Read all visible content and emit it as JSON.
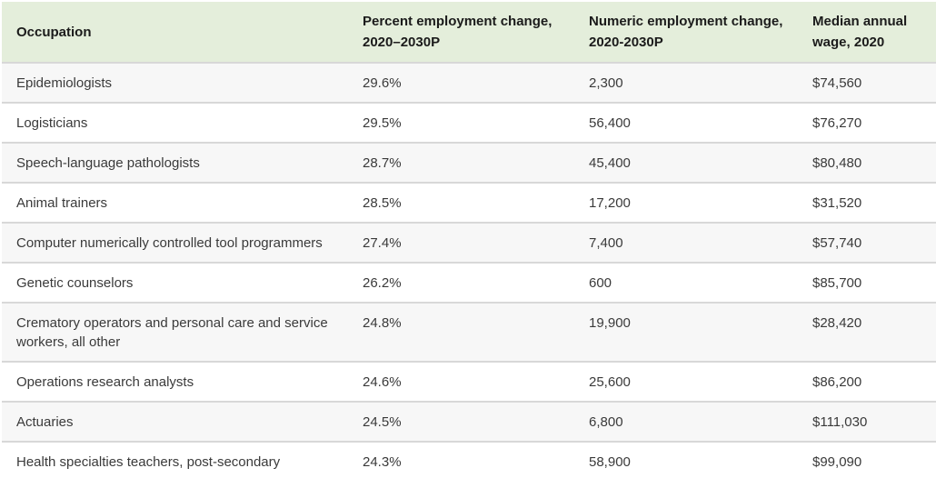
{
  "colors": {
    "header_bg": "#e4eedb",
    "row_bg": "#ffffff",
    "row_alt_bg": "#f7f7f7",
    "row_border": "#d8d8d8",
    "header_text": "#1b1b1b",
    "body_text": "#3a3a3a"
  },
  "chart_data": {
    "type": "table",
    "title": "",
    "columns": [
      "Occupation",
      "Percent employment change, 2020–2030P",
      "Numeric employment change, 2020-2030P",
      "Median annual wage, 2020"
    ],
    "rows": [
      {
        "occupation": "Epidemiologists",
        "percent_change": "29.6%",
        "numeric_change": "2,300",
        "median_wage": "$74,560"
      },
      {
        "occupation": "Logisticians",
        "percent_change": "29.5%",
        "numeric_change": "56,400",
        "median_wage": "$76,270"
      },
      {
        "occupation": "Speech-language pathologists",
        "percent_change": "28.7%",
        "numeric_change": "45,400",
        "median_wage": "$80,480"
      },
      {
        "occupation": "Animal trainers",
        "percent_change": "28.5%",
        "numeric_change": "17,200",
        "median_wage": "$31,520"
      },
      {
        "occupation": "Computer numerically controlled tool programmers",
        "percent_change": "27.4%",
        "numeric_change": "7,400",
        "median_wage": "$57,740"
      },
      {
        "occupation": "Genetic counselors",
        "percent_change": "26.2%",
        "numeric_change": "600",
        "median_wage": "$85,700"
      },
      {
        "occupation": "Crematory operators and personal care and service workers, all other",
        "percent_change": "24.8%",
        "numeric_change": "19,900",
        "median_wage": "$28,420"
      },
      {
        "occupation": "Operations research analysts",
        "percent_change": "24.6%",
        "numeric_change": "25,600",
        "median_wage": "$86,200"
      },
      {
        "occupation": "Actuaries",
        "percent_change": "24.5%",
        "numeric_change": "6,800",
        "median_wage": "$111,030"
      },
      {
        "occupation": "Health specialties teachers, post-secondary",
        "percent_change": "24.3%",
        "numeric_change": "58,900",
        "median_wage": "$99,090"
      }
    ],
    "percent_values": [
      29.6,
      29.5,
      28.7,
      28.5,
      27.4,
      26.2,
      24.8,
      24.6,
      24.5,
      24.3
    ],
    "numeric_values": [
      2300,
      56400,
      45400,
      17200,
      7400,
      600,
      19900,
      25600,
      6800,
      58900
    ],
    "wage_values": [
      74560,
      76270,
      80480,
      31520,
      57740,
      85700,
      28420,
      86200,
      111030,
      99090
    ]
  }
}
